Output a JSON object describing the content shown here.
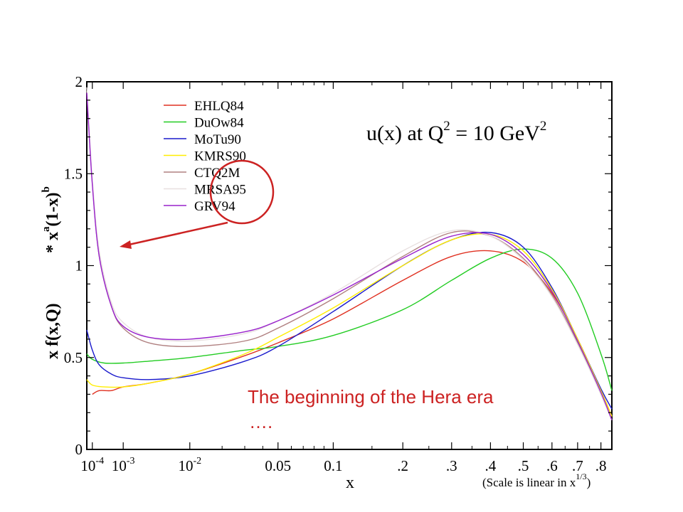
{
  "chart_data": {
    "type": "line",
    "title": "u(x) at Q",
    "title_sup1": "2",
    "title_mid": " = 10 GeV",
    "title_sup2": "2",
    "xlabel": "x",
    "x_scale": "linear in x^(1/3)",
    "x_scale_note": "(Scale is linear in x",
    "x_scale_note_sup": "1/3",
    "x_scale_note_end": ")",
    "ylabel": "x f(x,Q)",
    "ylabel2": "* x",
    "ylabel2_sup_a": "a",
    "ylabel2_mid": "(1-x)",
    "ylabel2_sup_b": "b",
    "xlim": [
      5e-05,
      0.85
    ],
    "ylim": [
      0,
      2
    ],
    "y_ticks": [
      {
        "value": 0,
        "label": "0"
      },
      {
        "value": 0.5,
        "label": "0.5"
      },
      {
        "value": 1,
        "label": "1"
      },
      {
        "value": 1.5,
        "label": "1.5"
      },
      {
        "value": 2,
        "label": "2"
      }
    ],
    "x_ticks": [
      {
        "value": 0.0001,
        "label": "10",
        "sup": "-4"
      },
      {
        "value": 0.001,
        "label": "10",
        "sup": "-3"
      },
      {
        "value": 0.01,
        "label": "10",
        "sup": "-2"
      },
      {
        "value": 0.05,
        "label": "0.05"
      },
      {
        "value": 0.1,
        "label": "0.1"
      },
      {
        "value": 0.2,
        "label": ".2"
      },
      {
        "value": 0.3,
        "label": ".3"
      },
      {
        "value": 0.4,
        "label": ".4"
      },
      {
        "value": 0.5,
        "label": ".5"
      },
      {
        "value": 0.6,
        "label": ".6"
      },
      {
        "value": 0.7,
        "label": ".7"
      },
      {
        "value": 0.8,
        "label": ".8"
      }
    ],
    "legend_position": "top-left",
    "series": [
      {
        "name": "EHLQ84",
        "color": "#e03020",
        "x": [
          0.0001,
          0.0002,
          0.0005,
          0.001,
          0.003,
          0.01,
          0.03,
          0.05,
          0.1,
          0.2,
          0.3,
          0.4,
          0.5,
          0.6,
          0.7,
          0.8,
          0.85
        ],
        "y": [
          0.3,
          0.32,
          0.32,
          0.34,
          0.36,
          0.41,
          0.51,
          0.58,
          0.71,
          0.92,
          1.05,
          1.08,
          1.02,
          0.85,
          0.6,
          0.32,
          0.18
        ]
      },
      {
        "name": "DuOw84",
        "color": "#22cc22",
        "x": [
          5e-05,
          0.0001,
          0.0003,
          0.001,
          0.003,
          0.01,
          0.03,
          0.05,
          0.1,
          0.2,
          0.3,
          0.4,
          0.5,
          0.6,
          0.7,
          0.8,
          0.85
        ],
        "y": [
          0.52,
          0.49,
          0.47,
          0.47,
          0.48,
          0.5,
          0.54,
          0.56,
          0.62,
          0.76,
          0.92,
          1.04,
          1.09,
          1.04,
          0.85,
          0.52,
          0.32
        ]
      },
      {
        "name": "MoTu90",
        "color": "#1a1acc",
        "x": [
          5e-05,
          0.0001,
          0.0002,
          0.0005,
          0.001,
          0.003,
          0.01,
          0.03,
          0.05,
          0.1,
          0.2,
          0.3,
          0.4,
          0.5,
          0.6,
          0.7,
          0.8,
          0.85
        ],
        "y": [
          0.65,
          0.54,
          0.46,
          0.41,
          0.39,
          0.38,
          0.4,
          0.48,
          0.56,
          0.75,
          1.0,
          1.14,
          1.18,
          1.1,
          0.88,
          0.6,
          0.33,
          0.22
        ]
      },
      {
        "name": "KMRS90",
        "color": "#ffee00",
        "x": [
          5e-05,
          0.0001,
          0.0003,
          0.001,
          0.003,
          0.01,
          0.03,
          0.05,
          0.1,
          0.2,
          0.3,
          0.4,
          0.5,
          0.6,
          0.7,
          0.8,
          0.85
        ],
        "y": [
          0.38,
          0.35,
          0.34,
          0.34,
          0.36,
          0.41,
          0.52,
          0.61,
          0.77,
          1.0,
          1.14,
          1.17,
          1.08,
          0.87,
          0.6,
          0.32,
          0.18
        ]
      },
      {
        "name": "CTQ2M",
        "color": "#b08080",
        "x": [
          5e-05,
          0.0001,
          0.0002,
          0.0005,
          0.001,
          0.003,
          0.01,
          0.03,
          0.05,
          0.1,
          0.2,
          0.3,
          0.4,
          0.5,
          0.6,
          0.7,
          0.8,
          0.85
        ],
        "y": [
          1.95,
          1.45,
          1.05,
          0.78,
          0.66,
          0.58,
          0.56,
          0.59,
          0.66,
          0.82,
          1.05,
          1.18,
          1.16,
          1.04,
          0.84,
          0.58,
          0.3,
          0.16
        ]
      },
      {
        "name": "MRSA95",
        "color": "#e8e0e0",
        "x": [
          5e-05,
          0.0001,
          0.0002,
          0.0005,
          0.001,
          0.003,
          0.01,
          0.03,
          0.05,
          0.1,
          0.2,
          0.3,
          0.4,
          0.5,
          0.6,
          0.7,
          0.8,
          0.85
        ],
        "y": [
          1.97,
          1.47,
          1.08,
          0.8,
          0.69,
          0.61,
          0.59,
          0.63,
          0.7,
          0.85,
          1.08,
          1.19,
          1.16,
          1.03,
          0.83,
          0.57,
          0.3,
          0.16
        ]
      },
      {
        "name": "GRV94",
        "color": "#9922cc",
        "x": [
          5e-05,
          0.0001,
          0.0002,
          0.0005,
          0.001,
          0.003,
          0.01,
          0.03,
          0.05,
          0.1,
          0.2,
          0.3,
          0.4,
          0.5,
          0.6,
          0.7,
          0.8,
          0.85
        ],
        "y": [
          1.94,
          1.44,
          1.05,
          0.78,
          0.67,
          0.61,
          0.6,
          0.64,
          0.7,
          0.84,
          1.04,
          1.16,
          1.17,
          1.06,
          0.86,
          0.59,
          0.31,
          0.16
        ]
      }
    ],
    "annotation": {
      "text": "The beginning of the Hera era",
      "text2": "….",
      "color": "#cc2222",
      "highlight_color": "#cc2222"
    }
  }
}
